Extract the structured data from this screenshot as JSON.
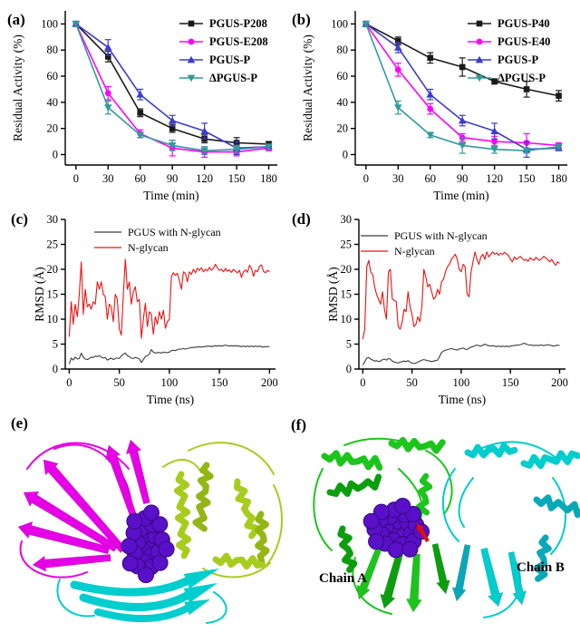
{
  "figure": {
    "background": "#ffffff",
    "panel_labels": {
      "a": "(a)",
      "b": "(b)",
      "c": "(c)",
      "d": "(d)",
      "e": "(e)",
      "f": "(f)"
    }
  },
  "chart_data": [
    {
      "id": "a",
      "panel_label": "(a)",
      "type": "line",
      "xlabel": "Time (min)",
      "ylabel": "Residual Activity (%)",
      "x": [
        0,
        30,
        60,
        90,
        120,
        150,
        180
      ],
      "xticks": [
        0,
        30,
        60,
        90,
        120,
        150,
        180
      ],
      "yticks": [
        0,
        20,
        40,
        60,
        80,
        100
      ],
      "xlim": [
        -10,
        188
      ],
      "ylim": [
        -8,
        110
      ],
      "legend_position": "top-right",
      "grid": false,
      "series": [
        {
          "name": "PGUS-P208",
          "color": "#1a1a1a",
          "marker": "square",
          "values": [
            100,
            75,
            32,
            20,
            12,
            9,
            8
          ],
          "errors": [
            2,
            4,
            3,
            3,
            3,
            4,
            2
          ]
        },
        {
          "name": "PGUS-E208",
          "color": "#ff00ff",
          "marker": "circle",
          "values": [
            100,
            47,
            16,
            5,
            2,
            2,
            5
          ],
          "errors": [
            2,
            5,
            3,
            6,
            4,
            3,
            2
          ]
        },
        {
          "name": "PGUS-P",
          "color": "#3c3ccd",
          "marker": "triangle-up",
          "values": [
            100,
            82,
            46,
            26,
            18,
            5,
            6
          ],
          "errors": [
            2,
            6,
            4,
            4,
            6,
            5,
            2
          ]
        },
        {
          "name": "ΔPGUS-P",
          "color": "#319a9a",
          "marker": "triangle-down",
          "values": [
            100,
            36,
            15,
            7,
            3,
            4,
            6
          ],
          "errors": [
            2,
            5,
            2,
            4,
            3,
            3,
            2
          ]
        }
      ]
    },
    {
      "id": "b",
      "panel_label": "(b)",
      "type": "line",
      "xlabel": "Time (min)",
      "ylabel": "Residual Activity (%)",
      "x": [
        0,
        30,
        60,
        90,
        120,
        150,
        180
      ],
      "xticks": [
        0,
        30,
        60,
        90,
        120,
        150,
        180
      ],
      "yticks": [
        0,
        20,
        40,
        60,
        80,
        100
      ],
      "xlim": [
        -10,
        188
      ],
      "ylim": [
        -8,
        110
      ],
      "legend_position": "top-right",
      "grid": false,
      "series": [
        {
          "name": "PGUS-P40",
          "color": "#1a1a1a",
          "marker": "square",
          "values": [
            100,
            87,
            74,
            67,
            56,
            50,
            45
          ],
          "errors": [
            2,
            3,
            4,
            7,
            2,
            6,
            4
          ]
        },
        {
          "name": "PGUS-E40",
          "color": "#ff00ff",
          "marker": "circle",
          "values": [
            100,
            65,
            35,
            13,
            10,
            9,
            7
          ],
          "errors": [
            2,
            5,
            4,
            3,
            4,
            7,
            2
          ]
        },
        {
          "name": "PGUS-P",
          "color": "#3c3ccd",
          "marker": "triangle-up",
          "values": [
            100,
            82,
            46,
            26,
            18,
            4,
            5
          ],
          "errors": [
            2,
            4,
            4,
            4,
            6,
            6,
            2
          ]
        },
        {
          "name": "ΔPGUS-P",
          "color": "#319a9a",
          "marker": "triangle-down",
          "values": [
            100,
            36,
            15,
            7,
            4,
            3,
            6
          ],
          "errors": [
            2,
            5,
            2,
            6,
            3,
            2,
            2
          ]
        }
      ]
    },
    {
      "id": "c",
      "panel_label": "(c)",
      "type": "line",
      "xlabel": "Time (ns)",
      "ylabel": "RMSD (Å)",
      "x_start": 0,
      "x_step": 2,
      "xticks": [
        0,
        50,
        100,
        150,
        200
      ],
      "yticks": [
        0,
        5,
        10,
        15,
        20,
        25,
        30
      ],
      "xlim": [
        -4,
        206
      ],
      "ylim": [
        0,
        30
      ],
      "legend_position": "top-left",
      "grid": false,
      "series": [
        {
          "name": "PGUS with N-glycan",
          "color": "#3d3d3d",
          "marker": "none",
          "values": [
            1,
            2.2,
            1.8,
            2.4,
            2,
            2.1,
            3.2,
            2.4,
            2,
            1.9,
            2.1,
            2.4,
            2.3,
            2.6,
            2.5,
            2.7,
            2.4,
            2.2,
            2.3,
            1.8,
            2,
            2.2,
            1.9,
            2.1,
            2.2,
            2.1,
            2.6,
            3,
            3.2,
            2.7,
            2.5,
            2.2,
            2.1,
            2.3,
            2.2,
            2,
            1.3,
            1.9,
            2.5,
            2.7,
            3,
            3.9,
            3.4,
            3.2,
            3.3,
            3.3,
            3.2,
            3.4,
            3.3,
            3.3,
            3.4,
            3.7,
            3.8,
            3.7,
            3.9,
            4,
            4,
            4.1,
            4,
            4.1,
            4.2,
            4.3,
            4.3,
            4.4,
            4.4,
            4.5,
            4.4,
            4.5,
            4.5,
            4.6,
            4.6,
            4.5,
            4.6,
            4.7,
            4.6,
            4.7,
            4.6,
            4.7,
            4.8,
            4.7,
            4.6,
            4.7,
            4.6,
            4.7,
            4.6,
            4.6,
            4.5,
            4.6,
            4.5,
            4.6,
            4.5,
            4.6,
            4.5,
            4.6,
            4.5,
            4.6,
            4.5,
            4.4,
            4.5,
            4.5,
            4.5
          ]
        },
        {
          "name": "N-glycan",
          "color": "#ee1111",
          "marker": "none",
          "values": [
            6.5,
            13.5,
            9,
            13,
            10.5,
            15,
            21.5,
            11,
            16,
            12.5,
            13,
            12,
            13.5,
            13,
            17.5,
            16,
            17.5,
            15,
            14.5,
            10,
            13,
            12.5,
            9.5,
            15,
            14,
            8,
            6.8,
            15,
            22,
            16,
            17.5,
            13,
            15.5,
            16.5,
            13.5,
            14,
            6.2,
            10,
            13.2,
            8.5,
            11.5,
            11,
            7,
            10.5,
            9,
            11.5,
            10,
            11.8,
            8.2,
            9.5,
            10,
            18.5,
            19.3,
            18.8,
            19.2,
            17.8,
            16,
            19.5,
            19.2,
            17.5,
            19.5,
            19,
            20,
            19.3,
            20.2,
            19.8,
            20.3,
            19.5,
            20,
            19.7,
            20.4,
            19.8,
            20.2,
            21,
            20.3,
            19.8,
            20,
            19.5,
            20.2,
            19.6,
            19.9,
            19.4,
            20,
            19.6,
            19.3,
            19.8,
            18.4,
            19.5,
            19.9,
            19.4,
            20.8,
            20.2,
            18.6,
            19.8,
            19.5,
            20.6,
            20.9,
            19.6,
            19.3,
            19.8,
            19.5
          ]
        }
      ]
    },
    {
      "id": "d",
      "panel_label": "(d)",
      "type": "line",
      "xlabel": "Time (ns)",
      "ylabel": "RMSD (Å)",
      "x_start": 0,
      "x_step": 2,
      "xticks": [
        0,
        50,
        100,
        150,
        200
      ],
      "yticks": [
        0,
        5,
        10,
        15,
        20,
        25,
        30
      ],
      "xlim": [
        -4,
        206
      ],
      "ylim": [
        0,
        30
      ],
      "legend_position": "top-left",
      "grid": false,
      "series": [
        {
          "name": "PGUS with N-glycan",
          "color": "#3d3d3d",
          "marker": "none",
          "values": [
            0.8,
            1.5,
            2.2,
            2.3,
            2,
            1.8,
            1.6,
            1.7,
            1.5,
            1.6,
            1.9,
            2,
            1.8,
            2.1,
            2,
            1.6,
            1.4,
            1.3,
            1.2,
            1.4,
            1.5,
            1.6,
            1.5,
            1.7,
            1.4,
            1.2,
            1.1,
            1.2,
            1.4,
            1.6,
            1.8,
            1.9,
            1.8,
            1.7,
            1.6,
            1.5,
            1.6,
            1.7,
            1.8,
            2.5,
            3.3,
            3.6,
            3.8,
            3.9,
            4,
            4.1,
            4,
            3.9,
            3.8,
            4,
            4.1,
            4.2,
            4,
            3.9,
            4.2,
            4.4,
            4.5,
            4.7,
            4.8,
            4.7,
            4.6,
            4.8,
            5,
            4.8,
            4.7,
            4.6,
            4.7,
            4.6,
            4.5,
            4.6,
            4.5,
            4.6,
            4.5,
            4.6,
            4.5,
            4.6,
            4.7,
            4.7,
            4.8,
            4.8,
            4.9,
            5,
            5.2,
            5,
            4.9,
            4.8,
            4.8,
            4.7,
            4.8,
            4.7,
            4.8,
            4.8,
            4.7,
            4.8,
            4.9,
            4.8,
            4.7,
            4.6,
            4.7,
            4.8,
            4.7
          ]
        },
        {
          "name": "N-glycan",
          "color": "#ee1111",
          "marker": "none",
          "values": [
            6,
            8,
            20.5,
            21.8,
            19.5,
            19,
            16.5,
            15,
            14,
            13,
            15.5,
            12,
            10,
            19.5,
            20,
            14,
            13.8,
            13.5,
            8.5,
            8,
            9.5,
            12,
            11.5,
            15.5,
            12.5,
            11,
            8.5,
            9,
            10.5,
            9.5,
            12.5,
            20,
            18.5,
            16.5,
            17,
            15.5,
            14,
            14.5,
            16,
            15,
            17.5,
            18,
            19.5,
            20.5,
            21,
            22,
            22.5,
            23,
            22,
            20,
            19.5,
            21,
            20.5,
            15,
            14.5,
            19.5,
            21.5,
            23.5,
            22,
            21,
            22.5,
            23,
            22,
            23.5,
            22.5,
            23,
            23.5,
            23,
            23.3,
            22.8,
            23.2,
            23,
            23.4,
            23.1,
            22.8,
            22,
            21.5,
            22.5,
            22,
            22.3,
            22.6,
            22.2,
            21.8,
            22,
            21.6,
            22.3,
            22,
            21.8,
            22.4,
            22,
            21.8,
            22.2,
            22.6,
            22.3,
            21.9,
            21.5,
            22,
            21.3,
            20.8,
            21.5,
            21.2
          ]
        }
      ]
    }
  ],
  "structures": {
    "e": {
      "label": "(e)",
      "description": "PGUS monomer cartoon with N-glycan spheres",
      "colors": {
        "domain_sugar_binding": "#e500e5",
        "domain_tim_barrel": "#a8cc1e",
        "domain_beta_sandwich": "#00cdcd",
        "n_glycan_spheres": "#5a10c8"
      }
    },
    "f": {
      "label": "(f)",
      "chain_a_label": "Chain A",
      "chain_b_label": "Chain B",
      "description": "PGUS dimer cartoon with N-glycan spheres",
      "colors": {
        "chain_a": "#1cc51c",
        "chain_b": "#00cdcd",
        "n_glycan_spheres": "#5a10c8",
        "active_site_residue": "#e01010"
      }
    }
  }
}
